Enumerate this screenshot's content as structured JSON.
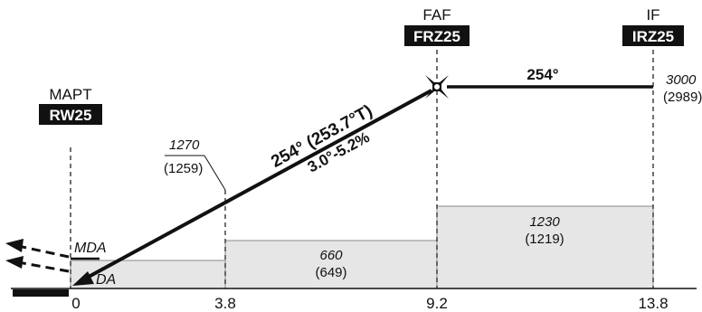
{
  "fixes": {
    "mapt": {
      "role": "MAPT",
      "ident": "RW25"
    },
    "faf": {
      "role": "FAF",
      "ident": "FRZ25"
    },
    "if": {
      "role": "IF",
      "ident": "IRZ25"
    }
  },
  "distances": [
    "0",
    "3.8",
    "9.2",
    "13.8"
  ],
  "final_segment": {
    "course": "254° (253.7°T)",
    "gradient": "3.0°-5.2%"
  },
  "intermediate_segment": {
    "course": "254°"
  },
  "altitudes": {
    "if_altitude": "3000",
    "if_altitude_paren": "(2989)",
    "step_altitude": "1270",
    "step_altitude_paren": "(1259)"
  },
  "obstacle_blocks": [
    {
      "value": "660",
      "paren": "(649)"
    },
    {
      "value": "1230",
      "paren": "(1219)"
    }
  ],
  "minima_labels": {
    "mda": "MDA",
    "da": "DA"
  },
  "colors": {
    "ink": "#111111",
    "shade": "#e6e6e6",
    "shade_edge": "#8a8a8a"
  },
  "icons": {
    "faf_symbol": "maltese-cross-icon"
  }
}
